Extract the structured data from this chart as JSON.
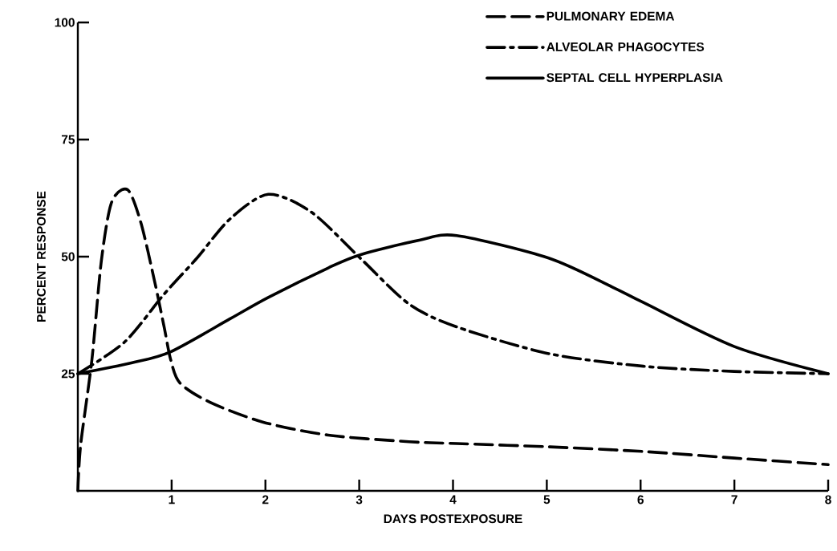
{
  "chart_data": {
    "type": "line",
    "xlabel": "DAYS POSTEXPOSURE",
    "ylabel": "PERCENT RESPONSE",
    "xlim": [
      0,
      8
    ],
    "ylim": [
      0,
      100
    ],
    "xticks": [
      1,
      2,
      3,
      4,
      5,
      6,
      7,
      8
    ],
    "yticks": [
      25,
      50,
      75,
      100
    ],
    "grid": false,
    "legend": "top right",
    "marker": "none",
    "series": [
      {
        "name": "PULMONARY EDEMA",
        "color": "#000000",
        "line_style": "dashed",
        "x": [
          0,
          0.03,
          0.15,
          0.25,
          0.36,
          0.53,
          0.67,
          0.81,
          0.92,
          0.99,
          1.09,
          1.41,
          1.97,
          2.67,
          3.53,
          4.04,
          5.02,
          6.03,
          7.0,
          8
        ],
        "values": [
          0,
          9.8,
          28,
          49,
          61.6,
          64.3,
          57.4,
          45.5,
          35,
          28,
          23,
          18.9,
          14.7,
          11.9,
          10.5,
          10.1,
          9.4,
          8.4,
          7.0,
          5.6
        ]
      },
      {
        "name": "ALVEOLAR PHAGOCYTES",
        "color": "#000000",
        "line_style": "dashdot",
        "x": [
          0,
          0.5,
          0.92,
          1.27,
          1.62,
          2.03,
          2.49,
          3.01,
          3.53,
          4.04,
          5.02,
          6.03,
          7.0,
          8
        ],
        "values": [
          25,
          31.8,
          42,
          49.7,
          58,
          63.3,
          59.5,
          49.7,
          39.9,
          35,
          29.3,
          26.6,
          25.5,
          25
        ]
      },
      {
        "name": "SEPTAL CELL HYPERPLASIA",
        "color": "#000000",
        "line_style": "solid",
        "x": [
          0,
          0.57,
          0.99,
          1.62,
          2.03,
          2.67,
          3.01,
          3.64,
          4.04,
          5.02,
          5.71,
          6.03,
          7.0,
          8
        ],
        "values": [
          25,
          27.3,
          29.7,
          36.7,
          41.3,
          47.6,
          50.4,
          53.5,
          54.5,
          49.7,
          43.4,
          40.2,
          30.8,
          25
        ]
      }
    ]
  }
}
